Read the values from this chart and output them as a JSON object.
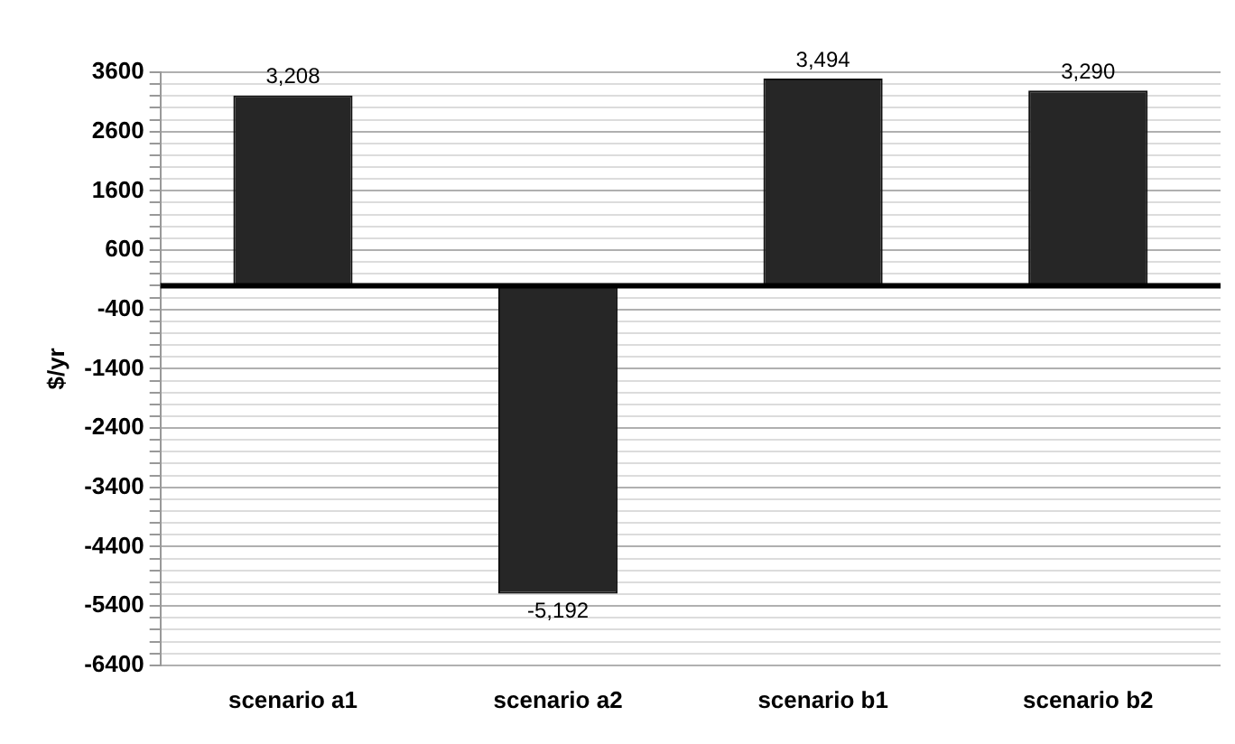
{
  "chart_data": {
    "type": "bar",
    "ylabel": "$/yr",
    "categories": [
      "scenario a1",
      "scenario a2",
      "scenario b1",
      "scenario b2"
    ],
    "values": [
      3208,
      -5192,
      3494,
      3290
    ],
    "value_labels": [
      "3,208",
      "-5,192",
      "3,494",
      "3,290"
    ],
    "color": "#262626",
    "ylim": [
      -6400,
      3600
    ],
    "yticks": [
      -6400,
      {
        "value": -6200,
        "label": null
      },
      {
        "value": -6000,
        "label": null
      },
      {
        "value": -5800,
        "label": null
      },
      {
        "value": -5600,
        "label": null
      },
      -5400,
      {
        "value": -5200,
        "label": null
      },
      {
        "value": -5000,
        "label": null
      },
      {
        "value": -4800,
        "label": null
      },
      {
        "value": -4600,
        "label": null
      },
      -4400,
      {
        "value": -4200,
        "label": null
      },
      {
        "value": -4000,
        "label": null
      },
      {
        "value": -3800,
        "label": null
      },
      {
        "value": -3600,
        "label": null
      },
      -3400,
      {
        "value": -3200,
        "label": null
      },
      {
        "value": -3000,
        "label": null
      },
      {
        "value": -2800,
        "label": null
      },
      {
        "value": -2600,
        "label": null
      },
      -2400,
      {
        "value": -2200,
        "label": null
      },
      {
        "value": -2000,
        "label": null
      },
      {
        "value": -1800,
        "label": null
      },
      {
        "value": -1600,
        "label": null
      },
      -1400,
      {
        "value": -1200,
        "label": null
      },
      {
        "value": -1000,
        "label": null
      },
      {
        "value": -800,
        "label": null
      },
      {
        "value": -600,
        "label": null
      },
      -400,
      {
        "value": -200,
        "label": null
      },
      {
        "value": 0,
        "label": null
      },
      {
        "value": 200,
        "label": null
      },
      {
        "value": 400,
        "label": null
      },
      600,
      {
        "value": 800,
        "label": null
      },
      {
        "value": 1000,
        "label": null
      },
      {
        "value": 1200,
        "label": null
      },
      {
        "value": 1400,
        "label": null
      },
      1600,
      {
        "value": 1800,
        "label": null
      },
      {
        "value": 2000,
        "label": null
      },
      {
        "value": 2200,
        "label": null
      },
      {
        "value": 2400,
        "label": null
      },
      2600,
      {
        "value": 2800,
        "label": null
      },
      {
        "value": 3000,
        "label": null
      },
      {
        "value": 3200,
        "label": null
      },
      {
        "value": 3400,
        "label": null
      },
      3600
    ],
    "grid": "y",
    "legend": false
  }
}
